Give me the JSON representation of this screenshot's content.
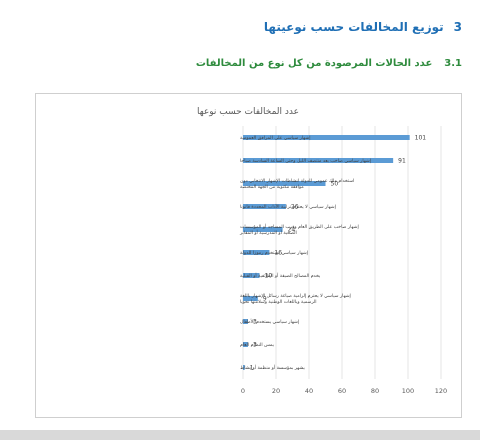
{
  "section": {
    "number": "3",
    "title": "توزيع المخالفات حسب نوعيتها"
  },
  "subsection": {
    "number": "3.1",
    "title": "عدد الحالات المرصودة من كل نوع من المخالفات"
  },
  "colors": {
    "bar": "#5b9bd5",
    "heading": "#1f6fb5",
    "subheading": "#2e8b3d",
    "grid": "#d9d9d9"
  },
  "chart_data": {
    "type": "bar",
    "orientation": "horizontal",
    "title": "عدد المخالفات حسب نوعها",
    "categories": [
      "إشهار سياسي على المرافق العمومية",
      "إشهار سياسي صاخب بعد منتصف الليل وحتى الساعة السادسة صباحا",
      "استخدام ملك عمومي للدولة لنشاطات الإشهار الانتخابي دون موافقة مكتوبة من الجهة المختصة",
      "إشهار سياسي لا يحترم ترابية الآداب المحددة قانونا",
      "إشهار صاخب على الطريق العام وقرب المساجد أو المؤسسات الصحية أو المدرسية أو المقابر",
      "إشهار سياسي يستخدم رموزا للدولة",
      "يخدم المصالح الضيقة أو الطائفية أو القبلية",
      "إشهار سياسي لا يحترم إلزامية صياغة رسائل الإشهار باللغة الرسمية وباللغات الوطنية وسلامتها نحويا",
      "إشهار سياسي يستخدم الأطفال",
      "يمس النظام العام",
      "يشهر بمؤسسة أو منظمة أو نشاط"
    ],
    "values": [
      101,
      91,
      50,
      26,
      24,
      16,
      10,
      9,
      3,
      3,
      1
    ],
    "xlim": [
      0,
      120
    ],
    "xticks": [
      0,
      20,
      40,
      60,
      80,
      100,
      120
    ],
    "grid": true,
    "legend": "none"
  }
}
